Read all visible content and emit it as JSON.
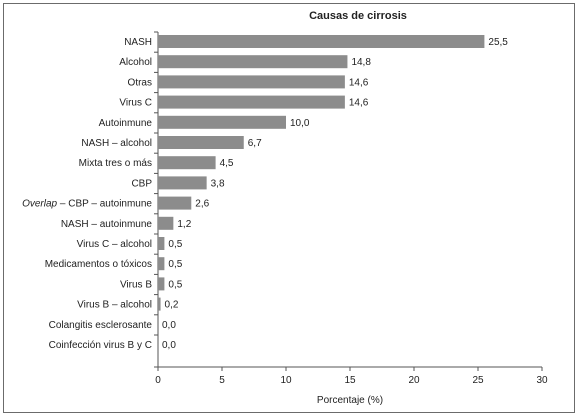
{
  "chart_data": {
    "type": "bar",
    "orientation": "horizontal",
    "title": "Causas de cirrosis",
    "xlabel": "Porcentaje (%)",
    "ylabel": "",
    "xlim": [
      0,
      30
    ],
    "xticks": [
      0,
      5,
      10,
      15,
      20,
      25,
      30
    ],
    "grid": false,
    "bar_color": "#8c8c8c",
    "categories": [
      "NASH",
      "Alcohol",
      "Otras",
      "Virus C",
      "Autoinmune",
      "NASH – alcohol",
      "Mixta tres o más",
      "CBP",
      "Overlap – CBP – autoinmune",
      "NASH – autoinmune",
      "Virus C – alcohol",
      "Medicamentos o tóxicos",
      "Virus B",
      "Virus B – alcohol",
      "Colangitis esclerosante",
      "Coinfección virus B y C"
    ],
    "values": [
      25.5,
      14.8,
      14.6,
      14.6,
      10.0,
      6.7,
      4.5,
      3.8,
      2.6,
      1.2,
      0.5,
      0.5,
      0.5,
      0.2,
      0.0,
      0.0
    ],
    "value_labels": [
      "25,5",
      "14,8",
      "14,6",
      "14,6",
      "10,0",
      "6,7",
      "4,5",
      "3,8",
      "2,6",
      "1,2",
      "0,5",
      "0,5",
      "0,5",
      "0,2",
      "0,0",
      "0,0"
    ]
  }
}
